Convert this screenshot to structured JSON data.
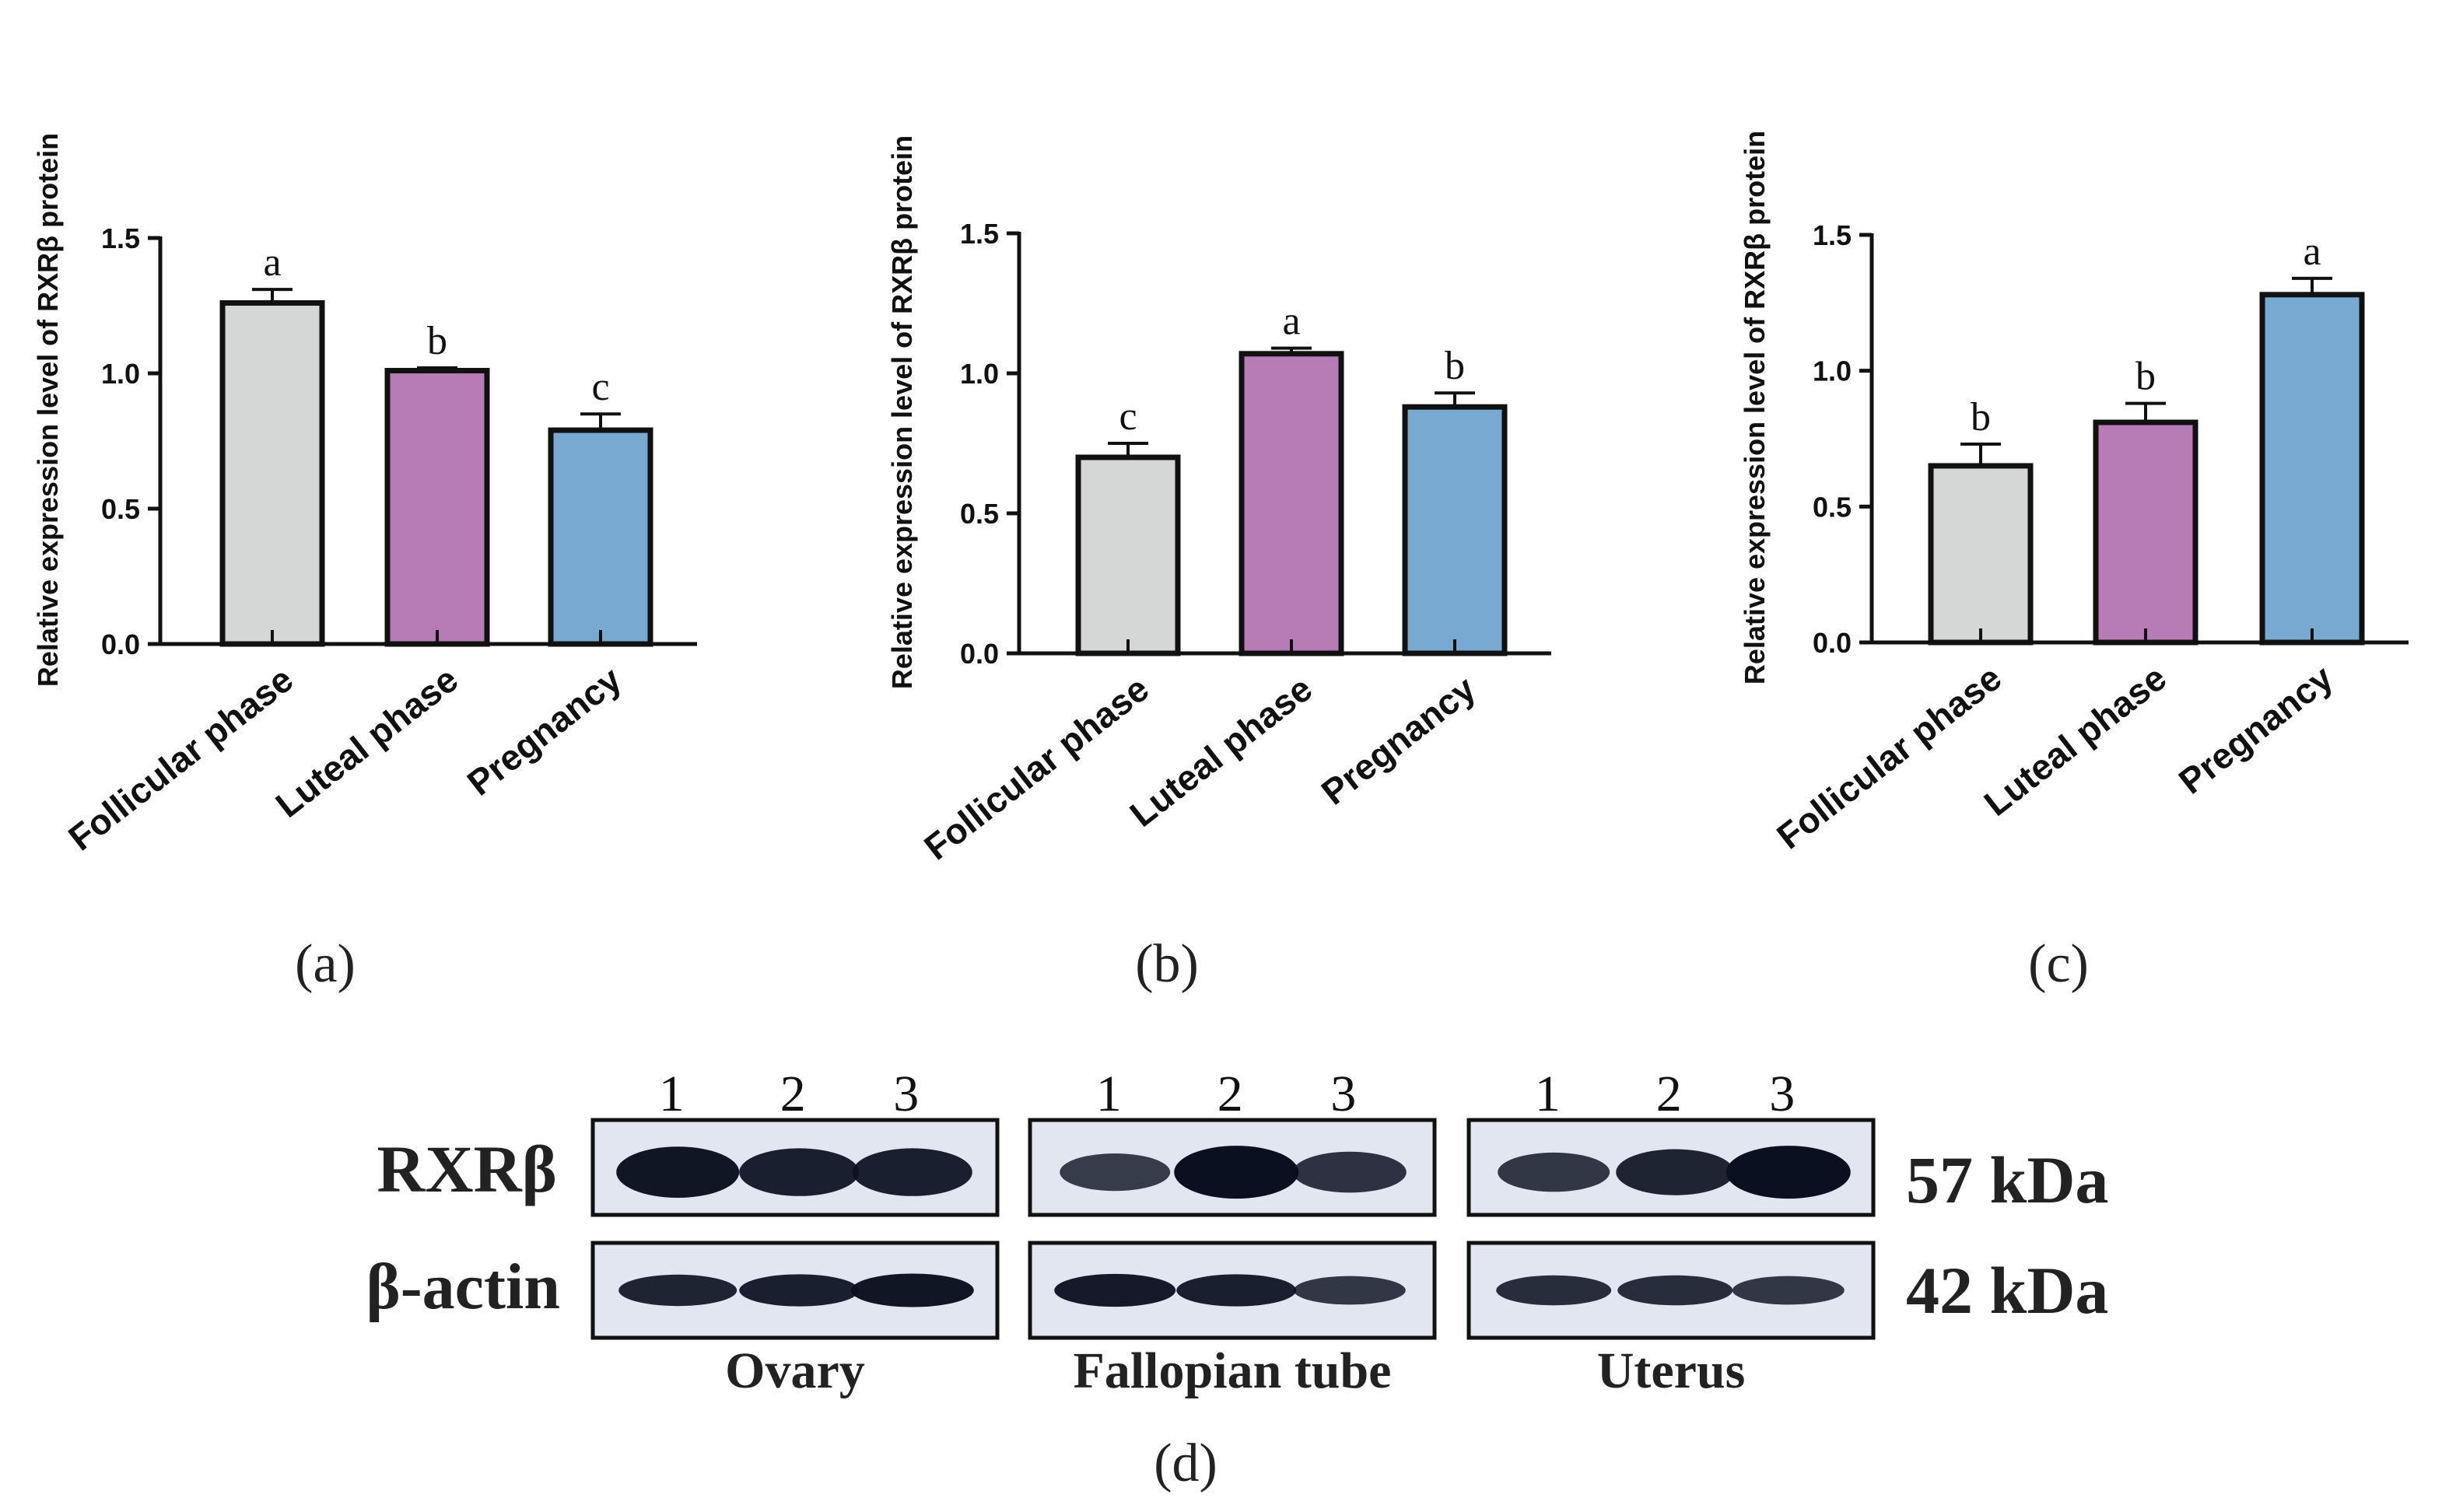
{
  "colors": {
    "bar_colors": [
      "#d4d7d6",
      "#b77bb5",
      "#77a9d1"
    ],
    "axis": "#111111",
    "blot_bg": "#e2e6f0",
    "band": "#0b1020"
  },
  "chart_data": [
    {
      "type": "bar",
      "panel_label": "(a)",
      "ylabel": "Relative expression level of RXRβ protein",
      "categories": [
        "Follicular phase",
        "Luteal phase",
        "Pregnancy"
      ],
      "values": [
        1.26,
        1.01,
        0.79
      ],
      "errors": [
        0.05,
        0.01,
        0.06
      ],
      "significance": [
        "a",
        "b",
        "c"
      ],
      "ylim": [
        0,
        1.5
      ],
      "yticks": [
        "0.0",
        "0.5",
        "1.0",
        "1.5"
      ],
      "grid": false
    },
    {
      "type": "bar",
      "panel_label": "(b)",
      "ylabel": "Relative expression level of RXRβ protein",
      "categories": [
        "Follicular phase",
        "Luteal phase",
        "Pregnancy"
      ],
      "values": [
        0.7,
        1.07,
        0.88
      ],
      "errors": [
        0.05,
        0.02,
        0.05
      ],
      "significance": [
        "c",
        "a",
        "b"
      ],
      "ylim": [
        0,
        1.5
      ],
      "yticks": [
        "0.0",
        "0.5",
        "1.0",
        "1.5"
      ],
      "grid": false
    },
    {
      "type": "bar",
      "panel_label": "(c)",
      "ylabel": "Relative expression level of RXRβ protein",
      "categories": [
        "Follicular phase",
        "Luteal phase",
        "Pregnancy"
      ],
      "values": [
        0.65,
        0.81,
        1.28
      ],
      "errors": [
        0.08,
        0.07,
        0.06
      ],
      "significance": [
        "b",
        "b",
        "a"
      ],
      "ylim": [
        0,
        1.5
      ],
      "yticks": [
        "0.0",
        "0.5",
        "1.0",
        "1.5"
      ],
      "grid": false
    }
  ],
  "western_blot": {
    "panel_label": "(d)",
    "row_labels": [
      "RXRβ",
      "β-actin"
    ],
    "kda_labels": [
      "57 kDa",
      "42 kDa"
    ],
    "tissues": [
      {
        "name": "Ovary",
        "lanes": [
          "1",
          "2",
          "3"
        ],
        "rxr_intensity": [
          0.95,
          0.85,
          0.85
        ],
        "actin_intensity": [
          0.8,
          0.85,
          0.95
        ]
      },
      {
        "name": "Fallopian tube",
        "lanes": [
          "1",
          "2",
          "3"
        ],
        "rxr_intensity": [
          0.55,
          1.0,
          0.65
        ],
        "actin_intensity": [
          0.9,
          0.85,
          0.6
        ]
      },
      {
        "name": "Uterus",
        "lanes": [
          "1",
          "2",
          "3"
        ],
        "rxr_intensity": [
          0.6,
          0.8,
          1.0
        ],
        "actin_intensity": [
          0.7,
          0.7,
          0.6
        ]
      }
    ]
  }
}
